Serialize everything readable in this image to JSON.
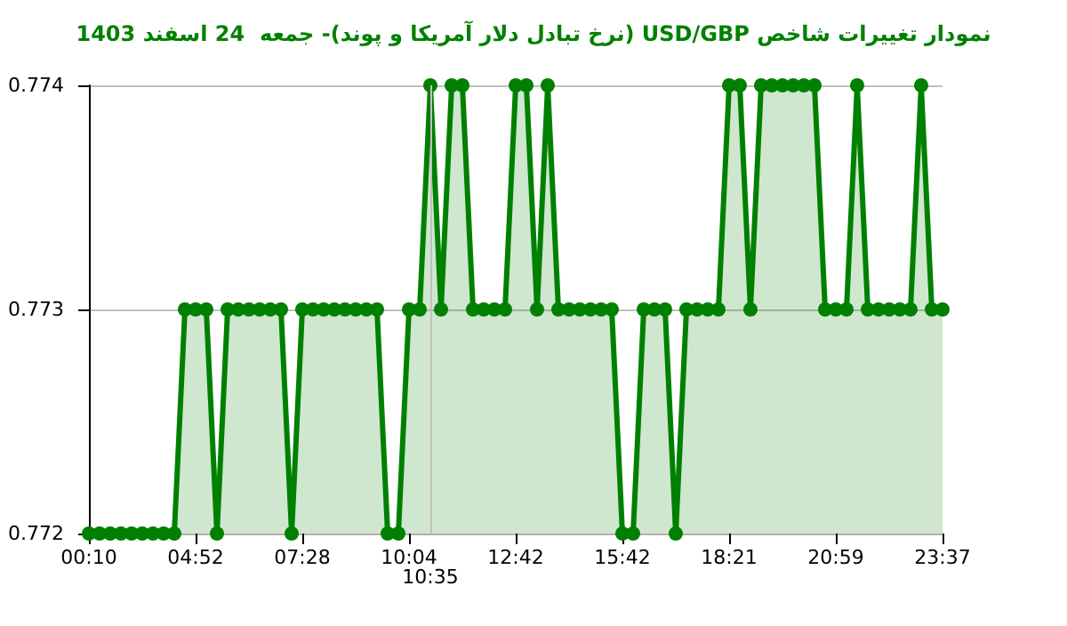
{
  "chart_data": {
    "type": "area",
    "title": "نمودار تغییرات شاخص USD/GBP (نرخ تبادل دلار آمریکا و پوند)- جمعه  24 اسفند 1403",
    "categories": [
      "00:10",
      null,
      null,
      null,
      null,
      null,
      null,
      null,
      null,
      null,
      "04:52",
      null,
      null,
      null,
      null,
      null,
      null,
      null,
      null,
      null,
      "07:28",
      null,
      null,
      null,
      null,
      null,
      null,
      null,
      null,
      null,
      "10:04",
      null,
      "10:35",
      null,
      null,
      null,
      null,
      null,
      null,
      null,
      "12:42",
      null,
      null,
      null,
      null,
      null,
      null,
      null,
      null,
      null,
      "15:42",
      null,
      null,
      null,
      null,
      null,
      null,
      null,
      null,
      null,
      "18:21",
      null,
      null,
      null,
      null,
      null,
      null,
      null,
      null,
      null,
      "20:59",
      null,
      null,
      null,
      null,
      null,
      null,
      null,
      null,
      null,
      "23:37"
    ],
    "series": [
      {
        "color": "#008000",
        "values": [
          0.772,
          0.772,
          0.772,
          0.772,
          0.772,
          0.772,
          0.772,
          0.772,
          0.772,
          0.773,
          0.773,
          0.773,
          0.772,
          0.773,
          0.773,
          0.773,
          0.773,
          0.773,
          0.773,
          0.772,
          0.773,
          0.773,
          0.773,
          0.773,
          0.773,
          0.773,
          0.773,
          0.773,
          0.772,
          0.772,
          0.773,
          0.773,
          0.774,
          0.773,
          0.774,
          0.774,
          0.773,
          0.773,
          0.773,
          0.773,
          0.774,
          0.774,
          0.773,
          0.774,
          0.773,
          0.773,
          0.773,
          0.773,
          0.773,
          0.773,
          0.772,
          0.772,
          0.773,
          0.773,
          0.773,
          0.772,
          0.773,
          0.773,
          0.773,
          0.773,
          0.774,
          0.774,
          0.773,
          0.774,
          0.774,
          0.774,
          0.774,
          0.774,
          0.774,
          0.773,
          0.773,
          0.773,
          0.774,
          0.773,
          0.773,
          0.773,
          0.773,
          0.773,
          0.774,
          0.773,
          0.773
        ]
      }
    ],
    "ylim": [
      0.772,
      0.774
    ],
    "yticks": [
      0.772,
      0.773,
      0.774
    ],
    "grid": "y",
    "marker": "circle",
    "line_style": "solid",
    "ref_lines": [
      {
        "axis": "x",
        "value": "10:35",
        "color": "#c0c0c0"
      }
    ]
  }
}
